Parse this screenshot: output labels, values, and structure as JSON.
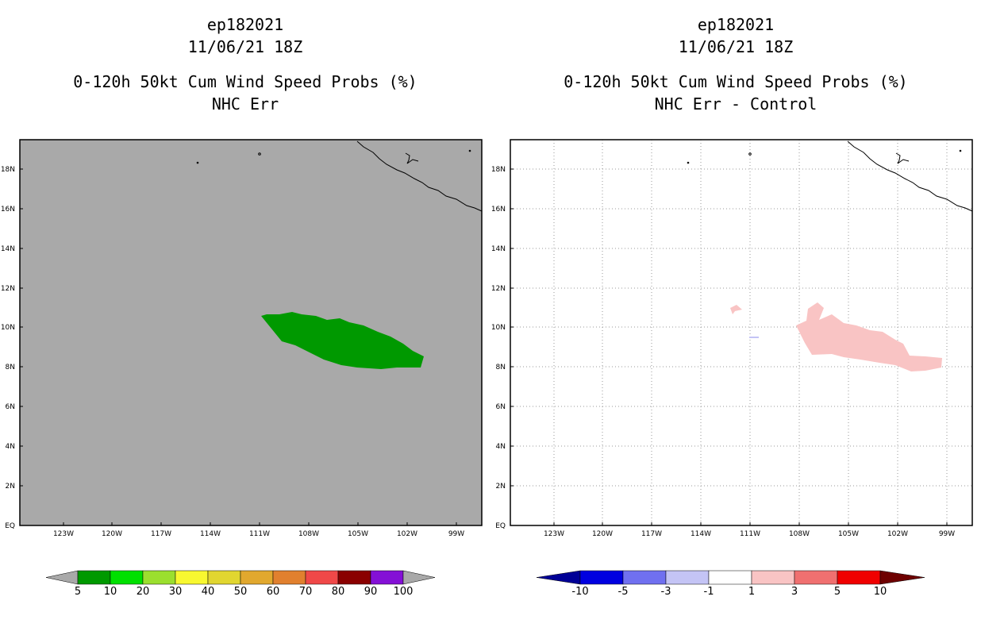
{
  "left": {
    "title_lines": [
      "ep182021",
      "11/06/21 18Z",
      "0-120h 50kt Cum Wind Speed Probs (%)",
      "NHC Err"
    ],
    "background": "#a9a9a9",
    "region_color": "#009900",
    "lat_labels": [
      "18N",
      "16N",
      "14N",
      "12N",
      "10N",
      "8N",
      "6N",
      "4N",
      "2N",
      "EQ"
    ],
    "lon_labels": [
      "123W",
      "120W",
      "117W",
      "114W",
      "111W",
      "108W",
      "105W",
      "102W",
      "99W"
    ],
    "colorbar": {
      "colors": [
        "#009900",
        "#00e000",
        "#9bdf2e",
        "#f8f830",
        "#e1d630",
        "#e1a82e",
        "#e1802e",
        "#f04848",
        "#8a0000",
        "#8410d6"
      ],
      "end_color": "#a9a9a9",
      "labels": [
        "5",
        "10",
        "20",
        "30",
        "40",
        "50",
        "60",
        "70",
        "80",
        "90",
        "100"
      ]
    }
  },
  "right": {
    "title_lines": [
      "ep182021",
      "11/06/21 18Z",
      "0-120h 50kt Cum Wind Speed Probs (%)",
      "NHC Err - Control"
    ],
    "background": "#ffffff",
    "region_color": "#f9c4c4",
    "minor_color": "#c4c4f5",
    "lat_labels": [
      "18N",
      "16N",
      "14N",
      "12N",
      "10N",
      "8N",
      "6N",
      "4N",
      "2N",
      "EQ"
    ],
    "lon_labels": [
      "123W",
      "120W",
      "117W",
      "114W",
      "111W",
      "108W",
      "105W",
      "102W",
      "99W"
    ],
    "colorbar": {
      "colors": [
        "#0000e0",
        "#7070f0",
        "#c4c4f5",
        "#ffffff",
        "#f9c4c4",
        "#f07070",
        "#f00000"
      ],
      "left_end": "#000096",
      "right_end": "#6e0000",
      "labels": [
        "-10",
        "-5",
        "-3",
        "-1",
        "1",
        "3",
        "5",
        "10"
      ]
    }
  }
}
